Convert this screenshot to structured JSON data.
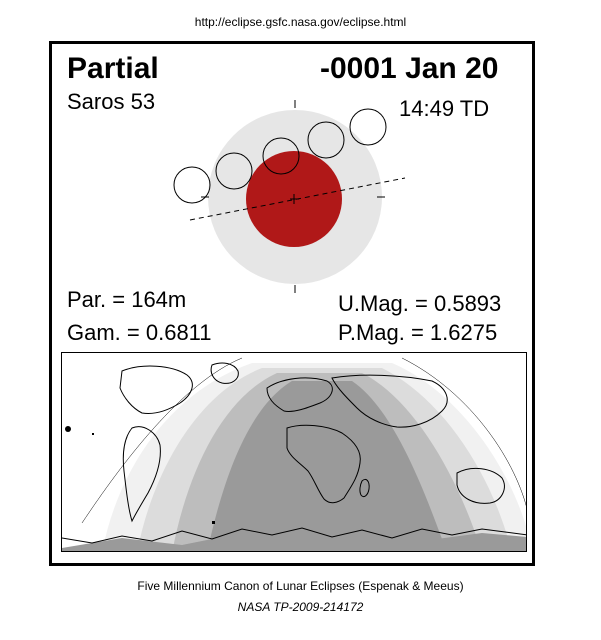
{
  "header": {
    "url": "http://eclipse.gsfc.nasa.gov/eclipse.html"
  },
  "eclipse": {
    "type": "Partial",
    "date": "-0001 Jan 20",
    "saros": "Saros  53",
    "time": "14:49 TD",
    "par": "Par. = 164m",
    "gam": "Gam. = 0.6811",
    "umag": "U.Mag. = 0.5893",
    "pmag": "P.Mag. = 1.6275"
  },
  "colors": {
    "umbra": "#b01818",
    "penumbra": "#e6e6e6",
    "map_dark": "#9a9a9a",
    "map_mid": "#bdbdbd",
    "map_light": "#dcdcdc",
    "map_lightest": "#f1f1f1"
  },
  "footer": {
    "line1": "Five Millennium Canon of Lunar Eclipses (Espenak & Meeus)",
    "line2": "NASA TP-2009-214172"
  }
}
